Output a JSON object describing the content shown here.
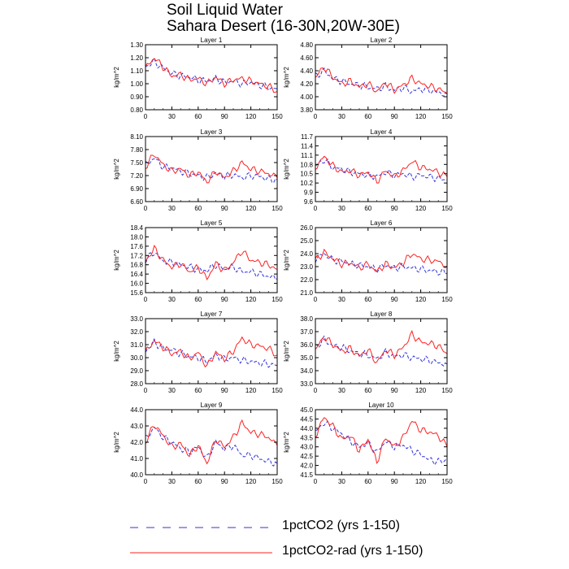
{
  "figure": {
    "title_line1": "Soil Liquid Water",
    "title_line2": "Sahara Desert (16-30N,20W-30E)"
  },
  "legend": {
    "items": [
      {
        "label": "1pctCO2 (yrs 1-150)",
        "color": "#3333dd",
        "dash": "dashed"
      },
      {
        "label": "1pctCO2-rad (yrs 1-150)",
        "color": "#ff2222",
        "dash": "solid"
      }
    ]
  },
  "chart_data": [
    {
      "type": "line",
      "title": "Layer 1",
      "ylabel": "kg/m^2",
      "xlim": [
        0,
        150
      ],
      "ylim": [
        0.8,
        1.3
      ],
      "xticks": [
        0,
        30,
        60,
        90,
        120,
        150
      ],
      "yticks": [
        "0.80",
        "0.90",
        "1.00",
        "1.10",
        "1.20",
        "1.30"
      ],
      "series": [
        {
          "name": "1pctCO2 (yrs 1-150)",
          "x": [
            0,
            10,
            20,
            30,
            40,
            50,
            60,
            70,
            80,
            90,
            100,
            110,
            120,
            130,
            140,
            150
          ],
          "values": [
            1.13,
            1.17,
            1.12,
            1.08,
            1.06,
            1.05,
            1.03,
            1.02,
            1.04,
            1.01,
            1.02,
            1.0,
            1.01,
            0.99,
            0.97,
            0.96
          ]
        },
        {
          "name": "1pctCO2-rad (yrs 1-150)",
          "x": [
            0,
            10,
            20,
            30,
            40,
            50,
            60,
            70,
            80,
            90,
            100,
            110,
            120,
            130,
            140,
            150
          ],
          "values": [
            1.12,
            1.2,
            1.13,
            1.06,
            1.07,
            1.03,
            1.04,
            1.0,
            1.05,
            1.0,
            1.03,
            1.04,
            1.02,
            1.0,
            0.98,
            0.94
          ]
        }
      ]
    },
    {
      "type": "line",
      "title": "Layer 2",
      "ylabel": "kg/m^2",
      "xlim": [
        0,
        150
      ],
      "ylim": [
        3.8,
        4.8
      ],
      "xticks": [
        0,
        30,
        60,
        90,
        120,
        150
      ],
      "yticks": [
        "3.80",
        "4.00",
        "4.20",
        "4.40",
        "4.60",
        "4.80"
      ],
      "series": [
        {
          "name": "1pctCO2 (yrs 1-150)",
          "x": [
            0,
            10,
            20,
            30,
            40,
            50,
            60,
            70,
            80,
            90,
            100,
            110,
            120,
            130,
            140,
            150
          ],
          "values": [
            4.32,
            4.4,
            4.28,
            4.24,
            4.2,
            4.18,
            4.15,
            4.12,
            4.16,
            4.1,
            4.14,
            4.08,
            4.12,
            4.1,
            4.06,
            4.04
          ]
        },
        {
          "name": "1pctCO2-rad (yrs 1-150)",
          "x": [
            0,
            10,
            20,
            30,
            40,
            50,
            60,
            70,
            80,
            90,
            100,
            110,
            120,
            130,
            140,
            150
          ],
          "values": [
            4.3,
            4.46,
            4.3,
            4.2,
            4.24,
            4.15,
            4.2,
            4.08,
            4.22,
            4.1,
            4.18,
            4.28,
            4.2,
            4.16,
            4.12,
            4.05
          ]
        }
      ]
    },
    {
      "type": "line",
      "title": "Layer 3",
      "ylabel": "kg/m^2",
      "xlim": [
        0,
        150
      ],
      "ylim": [
        6.6,
        8.1
      ],
      "xticks": [
        0,
        30,
        60,
        90,
        120,
        150
      ],
      "yticks": [
        "6.60",
        "6.90",
        "7.20",
        "7.50",
        "7.80",
        "8.10"
      ],
      "series": [
        {
          "name": "1pctCO2 (yrs 1-150)",
          "x": [
            0,
            10,
            20,
            30,
            40,
            50,
            60,
            70,
            80,
            90,
            100,
            110,
            120,
            130,
            140,
            150
          ],
          "values": [
            7.45,
            7.6,
            7.4,
            7.38,
            7.3,
            7.25,
            7.2,
            7.15,
            7.25,
            7.18,
            7.22,
            7.15,
            7.2,
            7.18,
            7.12,
            7.1
          ]
        },
        {
          "name": "1pctCO2-rad (yrs 1-150)",
          "x": [
            0,
            10,
            20,
            30,
            40,
            50,
            60,
            70,
            80,
            90,
            100,
            110,
            120,
            130,
            140,
            150
          ],
          "values": [
            7.4,
            7.7,
            7.45,
            7.3,
            7.35,
            7.2,
            7.28,
            7.05,
            7.3,
            7.15,
            7.3,
            7.5,
            7.35,
            7.3,
            7.25,
            7.15
          ]
        }
      ]
    },
    {
      "type": "line",
      "title": "Layer 4",
      "ylabel": "kg/m^2",
      "xlim": [
        0,
        150
      ],
      "ylim": [
        9.6,
        11.7
      ],
      "xticks": [
        0,
        30,
        60,
        90,
        120,
        150
      ],
      "yticks": [
        "9.6",
        "9.9",
        "10.2",
        "10.5",
        "10.8",
        "11.1",
        "11.4",
        "11.7"
      ],
      "series": [
        {
          "name": "1pctCO2 (yrs 1-150)",
          "x": [
            0,
            10,
            20,
            30,
            40,
            50,
            60,
            70,
            80,
            90,
            100,
            110,
            120,
            130,
            140,
            150
          ],
          "values": [
            10.75,
            10.95,
            10.7,
            10.65,
            10.55,
            10.5,
            10.45,
            10.4,
            10.55,
            10.45,
            10.5,
            10.4,
            10.45,
            10.4,
            10.35,
            10.3
          ]
        },
        {
          "name": "1pctCO2-rad (yrs 1-150)",
          "x": [
            0,
            10,
            20,
            30,
            40,
            50,
            60,
            70,
            80,
            90,
            100,
            110,
            120,
            130,
            140,
            150
          ],
          "values": [
            10.7,
            11.05,
            10.75,
            10.55,
            10.6,
            10.45,
            10.55,
            10.25,
            10.6,
            10.4,
            10.6,
            10.9,
            10.7,
            10.65,
            10.55,
            10.4
          ]
        }
      ]
    },
    {
      "type": "line",
      "title": "Layer 5",
      "ylabel": "kg/m^2",
      "xlim": [
        0,
        150
      ],
      "ylim": [
        15.6,
        18.4
      ],
      "xticks": [
        0,
        30,
        60,
        90,
        120,
        150
      ],
      "yticks": [
        "15.6",
        "16.0",
        "16.4",
        "16.8",
        "17.2",
        "17.6",
        "18.0",
        "18.4"
      ],
      "series": [
        {
          "name": "1pctCO2 (yrs 1-150)",
          "x": [
            0,
            10,
            20,
            30,
            40,
            50,
            60,
            70,
            80,
            90,
            100,
            110,
            120,
            130,
            140,
            150
          ],
          "values": [
            17.0,
            17.35,
            16.95,
            16.9,
            16.8,
            16.7,
            16.6,
            16.55,
            16.8,
            16.6,
            16.7,
            16.5,
            16.5,
            16.4,
            16.3,
            16.2
          ]
        },
        {
          "name": "1pctCO2-rad (yrs 1-150)",
          "x": [
            0,
            10,
            20,
            30,
            40,
            50,
            60,
            70,
            80,
            90,
            100,
            110,
            120,
            130,
            140,
            150
          ],
          "values": [
            16.95,
            17.5,
            17.0,
            16.7,
            16.85,
            16.5,
            16.7,
            16.2,
            16.85,
            16.55,
            16.9,
            17.4,
            17.0,
            16.9,
            16.8,
            16.6
          ]
        }
      ]
    },
    {
      "type": "line",
      "title": "Layer 6",
      "ylabel": "kg/m^2",
      "xlim": [
        0,
        150
      ],
      "ylim": [
        21.0,
        26.0
      ],
      "xticks": [
        0,
        30,
        60,
        90,
        120,
        150
      ],
      "yticks": [
        "21.0",
        "22.0",
        "23.0",
        "24.0",
        "25.0",
        "26.0"
      ],
      "series": [
        {
          "name": "1pctCO2 (yrs 1-150)",
          "x": [
            0,
            10,
            20,
            30,
            40,
            50,
            60,
            70,
            80,
            90,
            100,
            110,
            120,
            130,
            140,
            150
          ],
          "values": [
            23.6,
            24.0,
            23.5,
            23.4,
            23.2,
            23.1,
            23.0,
            22.8,
            23.1,
            22.9,
            23.0,
            22.9,
            22.8,
            22.7,
            22.6,
            22.5
          ]
        },
        {
          "name": "1pctCO2-rad (yrs 1-150)",
          "x": [
            0,
            10,
            20,
            30,
            40,
            50,
            60,
            70,
            80,
            90,
            100,
            110,
            120,
            130,
            140,
            150
          ],
          "values": [
            23.5,
            24.1,
            23.6,
            23.2,
            23.3,
            22.9,
            23.2,
            22.6,
            23.2,
            22.9,
            23.3,
            24.0,
            23.6,
            23.5,
            23.4,
            23.0
          ]
        }
      ]
    },
    {
      "type": "line",
      "title": "Layer 7",
      "ylabel": "kg/m^2",
      "xlim": [
        0,
        150
      ],
      "ylim": [
        28.0,
        33.0
      ],
      "xticks": [
        0,
        30,
        60,
        90,
        120,
        150
      ],
      "yticks": [
        "28.0",
        "29.0",
        "30.0",
        "31.0",
        "32.0",
        "33.0"
      ],
      "series": [
        {
          "name": "1pctCO2 (yrs 1-150)",
          "x": [
            0,
            10,
            20,
            30,
            40,
            50,
            60,
            70,
            80,
            90,
            100,
            110,
            120,
            130,
            140,
            150
          ],
          "values": [
            30.5,
            31.2,
            30.7,
            30.6,
            30.3,
            30.1,
            30.0,
            29.7,
            30.2,
            29.9,
            30.0,
            29.8,
            29.7,
            29.6,
            29.5,
            29.4
          ]
        },
        {
          "name": "1pctCO2-rad (yrs 1-150)",
          "x": [
            0,
            10,
            20,
            30,
            40,
            50,
            60,
            70,
            80,
            90,
            100,
            110,
            120,
            130,
            140,
            150
          ],
          "values": [
            30.4,
            31.3,
            30.8,
            30.3,
            30.5,
            29.9,
            30.4,
            29.3,
            30.4,
            29.9,
            30.5,
            31.5,
            31.0,
            30.9,
            30.7,
            30.2
          ]
        }
      ]
    },
    {
      "type": "line",
      "title": "Layer 8",
      "ylabel": "kg/m^2",
      "xlim": [
        0,
        150
      ],
      "ylim": [
        33.0,
        38.0
      ],
      "xticks": [
        0,
        30,
        60,
        90,
        120,
        150
      ],
      "yticks": [
        "33.0",
        "34.0",
        "35.0",
        "36.0",
        "37.0",
        "38.0"
      ],
      "series": [
        {
          "name": "1pctCO2 (yrs 1-150)",
          "x": [
            0,
            10,
            20,
            30,
            40,
            50,
            60,
            70,
            80,
            90,
            100,
            110,
            120,
            130,
            140,
            150
          ],
          "values": [
            35.8,
            36.4,
            35.9,
            35.8,
            35.5,
            35.3,
            35.2,
            34.9,
            35.4,
            35.1,
            35.2,
            35.0,
            34.9,
            34.8,
            34.6,
            34.5
          ]
        },
        {
          "name": "1pctCO2-rad (yrs 1-150)",
          "x": [
            0,
            10,
            20,
            30,
            40,
            50,
            60,
            70,
            80,
            90,
            100,
            110,
            120,
            130,
            140,
            150
          ],
          "values": [
            35.6,
            36.6,
            36.0,
            35.5,
            35.7,
            35.1,
            35.6,
            34.6,
            35.6,
            35.2,
            35.8,
            36.8,
            36.2,
            36.1,
            35.9,
            35.3
          ]
        }
      ]
    },
    {
      "type": "line",
      "title": "Layer 9",
      "ylabel": "kg/m^2",
      "xlim": [
        0,
        150
      ],
      "ylim": [
        40.0,
        44.0
      ],
      "xticks": [
        0,
        30,
        60,
        90,
        120,
        150
      ],
      "yticks": [
        "40.0",
        "41.0",
        "42.0",
        "43.0",
        "44.0"
      ],
      "series": [
        {
          "name": "1pctCO2 (yrs 1-150)",
          "x": [
            0,
            10,
            20,
            30,
            40,
            50,
            60,
            70,
            80,
            90,
            100,
            110,
            120,
            130,
            140,
            150
          ],
          "values": [
            42.2,
            42.9,
            42.3,
            42.0,
            41.6,
            41.4,
            41.7,
            41.0,
            42.0,
            41.6,
            41.8,
            41.2,
            41.2,
            41.0,
            40.8,
            40.7
          ]
        },
        {
          "name": "1pctCO2-rad (yrs 1-150)",
          "x": [
            0,
            10,
            20,
            30,
            40,
            50,
            60,
            70,
            80,
            90,
            100,
            110,
            120,
            130,
            140,
            150
          ],
          "values": [
            42.0,
            43.1,
            42.4,
            41.7,
            41.9,
            41.2,
            41.8,
            40.7,
            42.2,
            41.7,
            42.3,
            43.2,
            42.6,
            42.5,
            42.3,
            41.8
          ]
        }
      ]
    },
    {
      "type": "line",
      "title": "Layer 10",
      "ylabel": "kg/m^2",
      "xlim": [
        0,
        150
      ],
      "ylim": [
        41.5,
        45.0
      ],
      "xticks": [
        0,
        30,
        60,
        90,
        120,
        150
      ],
      "yticks": [
        "41.5",
        "42.0",
        "42.5",
        "43.0",
        "43.5",
        "44.0",
        "44.5",
        "45.0"
      ],
      "series": [
        {
          "name": "1pctCO2 (yrs 1-150)",
          "x": [
            0,
            10,
            20,
            30,
            40,
            50,
            60,
            70,
            80,
            90,
            100,
            110,
            120,
            130,
            140,
            150
          ],
          "values": [
            43.8,
            44.3,
            44.0,
            43.7,
            43.3,
            43.0,
            43.2,
            42.7,
            43.3,
            43.0,
            43.1,
            42.8,
            42.6,
            42.3,
            42.2,
            42.3
          ]
        },
        {
          "name": "1pctCO2-rad (yrs 1-150)",
          "x": [
            0,
            10,
            20,
            30,
            40,
            50,
            60,
            70,
            80,
            90,
            100,
            110,
            120,
            130,
            140,
            150
          ],
          "values": [
            43.6,
            44.6,
            44.1,
            43.4,
            43.6,
            42.8,
            43.4,
            42.2,
            43.5,
            43.0,
            43.5,
            44.4,
            43.9,
            43.8,
            43.6,
            43.0
          ]
        }
      ]
    }
  ]
}
